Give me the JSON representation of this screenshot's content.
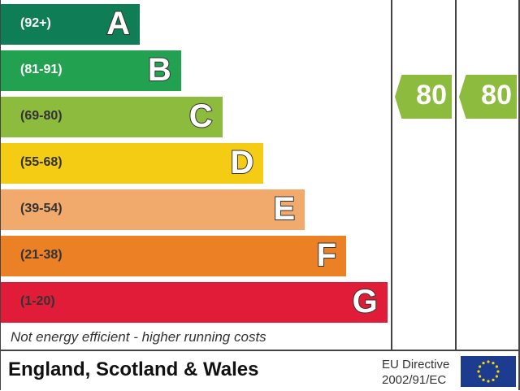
{
  "chart_data": {
    "type": "bar",
    "categories": [
      "A",
      "B",
      "C",
      "D",
      "E",
      "F",
      "G"
    ],
    "ranges": [
      "(92+)",
      "(81-91)",
      "(69-80)",
      "(55-68)",
      "(39-54)",
      "(21-38)",
      "(1-20)"
    ],
    "colors": [
      "#0f7d55",
      "#22a150",
      "#8dbb3d",
      "#f4cc14",
      "#f2aa6c",
      "#ec8024",
      "#e11c39"
    ],
    "current_rating": 80,
    "potential_rating": 80,
    "rating_band_color": "#8dbb3d",
    "bottom_note": "Not energy efficient - higher running costs"
  },
  "footer": {
    "region": "England, Scotland & Wales",
    "directive_line1": "EU Directive",
    "directive_line2": "2002/91/EC",
    "flag_icon": "eu-flag-icon"
  }
}
